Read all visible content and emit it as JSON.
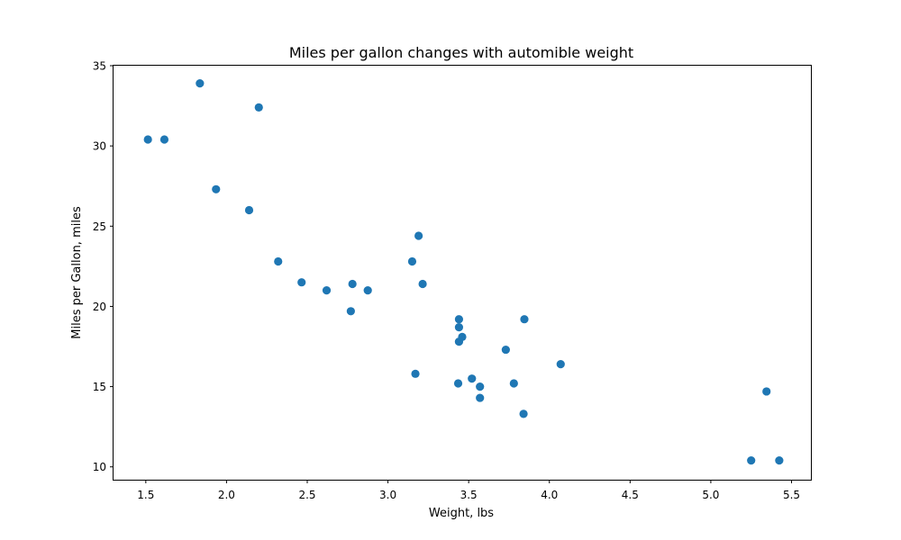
{
  "chart_data": {
    "type": "scatter",
    "title": "Miles per gallon changes with automible weight",
    "xlabel": "Weight, lbs",
    "ylabel": "Miles per Gallon, miles",
    "xlim": [
      1.3,
      5.62
    ],
    "ylim": [
      9.2,
      35.0
    ],
    "xticks": [
      1.5,
      2.0,
      2.5,
      3.0,
      3.5,
      4.0,
      4.5,
      5.0,
      5.5
    ],
    "xtick_labels": [
      "1.5",
      "2.0",
      "2.5",
      "3.0",
      "3.5",
      "4.0",
      "4.5",
      "5.0",
      "5.5"
    ],
    "yticks": [
      10,
      15,
      20,
      25,
      30,
      35
    ],
    "ytick_labels": [
      "10",
      "15",
      "20",
      "25",
      "30",
      "35"
    ],
    "grid": false,
    "marker_color": "#1f77b4",
    "series": [
      {
        "x": [
          1.513,
          1.615,
          1.835,
          1.935,
          2.14,
          2.2,
          2.32,
          2.465,
          2.62,
          2.77,
          2.78,
          2.875,
          3.15,
          3.17,
          3.19,
          3.215,
          3.435,
          3.44,
          3.44,
          3.44,
          3.46,
          3.52,
          3.57,
          3.57,
          3.73,
          3.78,
          3.84,
          3.845,
          4.07,
          5.25,
          5.345,
          5.424
        ],
        "y": [
          30.4,
          30.4,
          33.9,
          27.3,
          26.0,
          32.4,
          22.8,
          21.5,
          21.0,
          19.7,
          21.4,
          21.0,
          22.8,
          15.8,
          24.4,
          21.4,
          15.2,
          18.7,
          19.2,
          17.8,
          18.1,
          15.5,
          15.0,
          14.3,
          17.3,
          15.2,
          13.3,
          19.2,
          16.4,
          10.4,
          14.7,
          10.4
        ]
      }
    ]
  }
}
